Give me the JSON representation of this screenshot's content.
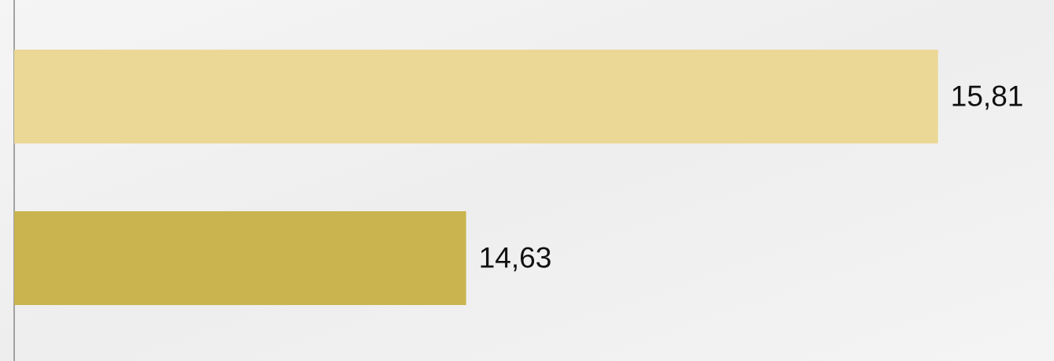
{
  "chart_data": {
    "type": "hbar",
    "values": [
      15.81,
      14.63
    ],
    "value_labels": [
      "15,81",
      "14,63"
    ],
    "colors": [
      "#ebd896",
      "#c9b44f"
    ],
    "xlim": [
      13.5,
      16.1
    ]
  }
}
